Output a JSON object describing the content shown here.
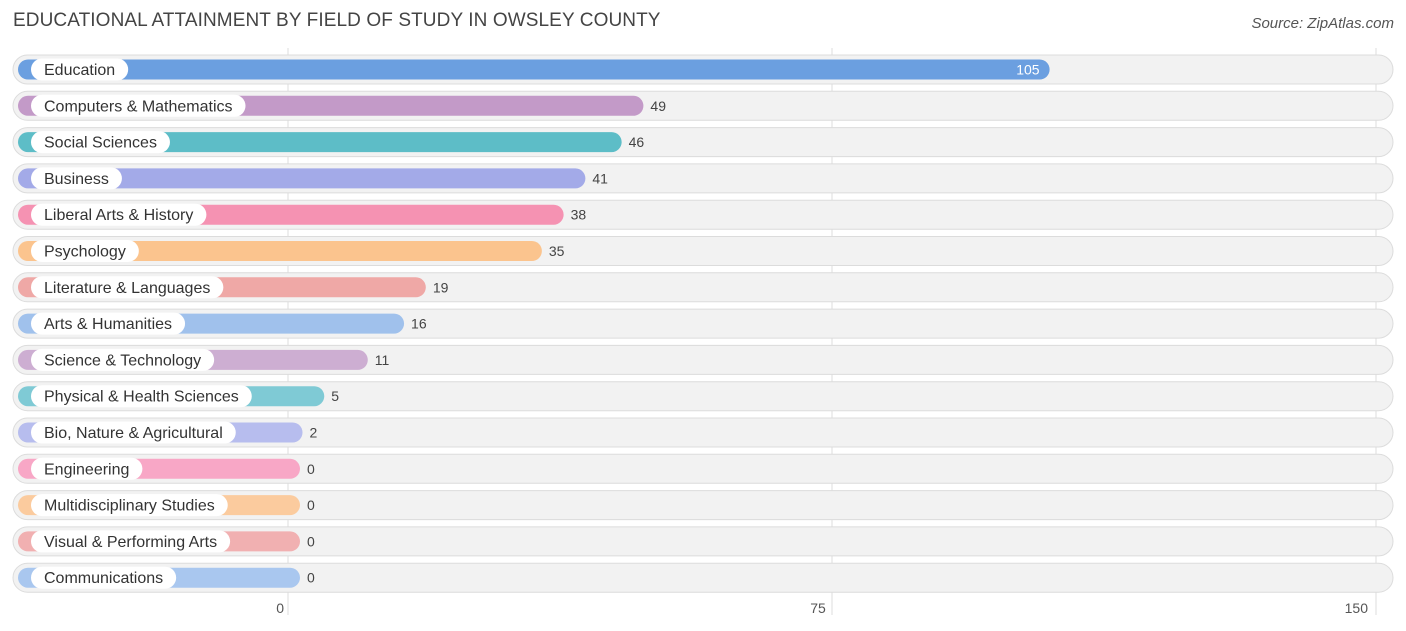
{
  "chart_data": {
    "type": "bar",
    "orientation": "horizontal",
    "title": "EDUCATIONAL ATTAINMENT BY FIELD OF STUDY IN OWSLEY COUNTY",
    "source": "Source: ZipAtlas.com",
    "categories": [
      "Education",
      "Computers & Mathematics",
      "Social Sciences",
      "Business",
      "Liberal Arts & History",
      "Psychology",
      "Literature & Languages",
      "Arts & Humanities",
      "Science & Technology",
      "Physical & Health Sciences",
      "Bio, Nature & Agricultural",
      "Engineering",
      "Multidisciplinary Studies",
      "Visual & Performing Arts",
      "Communications"
    ],
    "values": [
      105,
      49,
      46,
      41,
      38,
      35,
      19,
      16,
      11,
      5,
      2,
      0,
      0,
      0,
      0
    ],
    "value_labels": [
      "105",
      "49",
      "46",
      "41",
      "38",
      "35",
      "19",
      "16",
      "11",
      "5",
      "2",
      "0",
      "0",
      "0",
      "0"
    ],
    "colors": [
      "#6b9fe0",
      "#c39ac8",
      "#5dbdc7",
      "#a3aae8",
      "#f592b2",
      "#fbc48e",
      "#efa8a6",
      "#a0c1ec",
      "#cdaed2",
      "#7fcad5",
      "#b7bdee",
      "#f8a7c6",
      "#fbcb9e",
      "#f1b0b1",
      "#a9c7ef"
    ],
    "xlim": [
      0,
      150
    ],
    "xticks": [
      0,
      75,
      150
    ],
    "xtick_labels": [
      "0",
      "75",
      "150"
    ],
    "grid": true
  }
}
